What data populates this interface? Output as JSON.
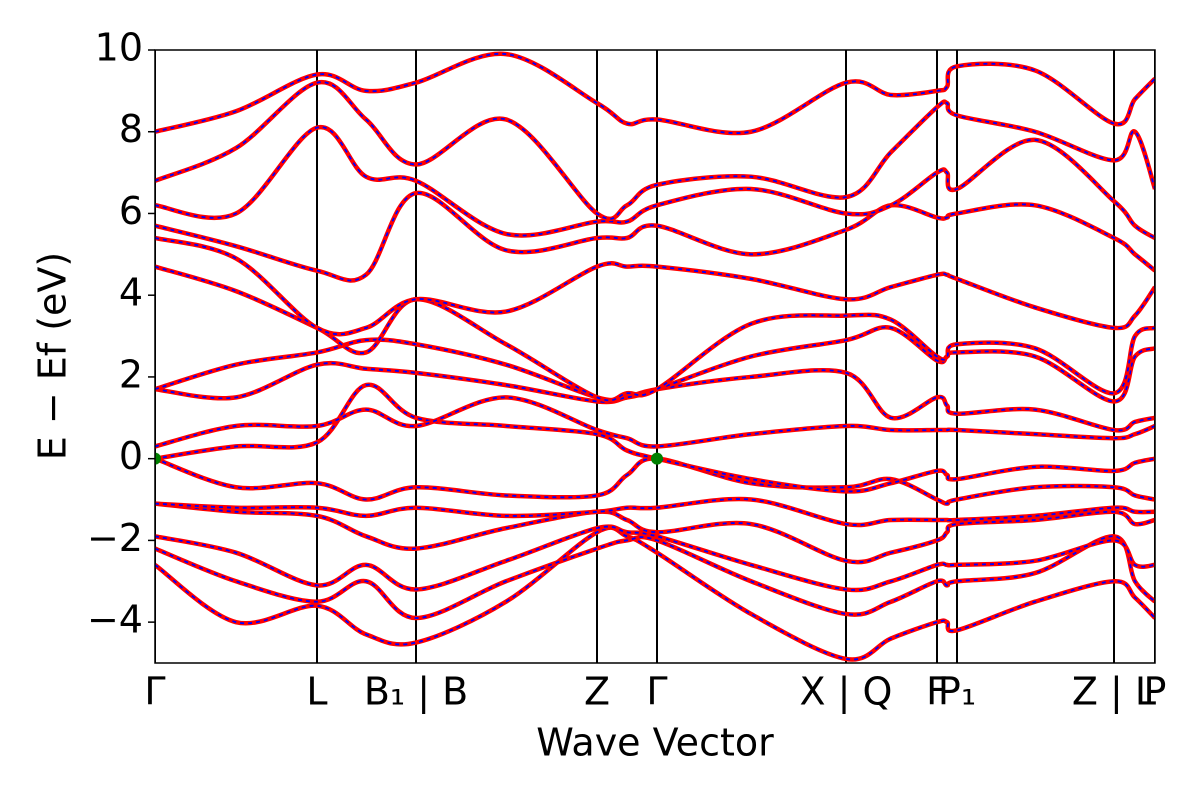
{
  "chart_data": {
    "type": "band_structure",
    "ylabel": "E − Ef (eV)",
    "xlabel": "Wave Vector",
    "xlim": [
      0,
      1000
    ],
    "ylim": [
      -5,
      10
    ],
    "yticks": [
      {
        "value": -4,
        "label": "−4"
      },
      {
        "value": -2,
        "label": "−2"
      },
      0,
      2,
      4,
      6,
      8,
      10
    ],
    "xticks": [
      {
        "value": 0,
        "label": "Γ"
      },
      {
        "value": 162,
        "label": "L"
      },
      {
        "value": 261,
        "label": "B₁ | B"
      },
      {
        "value": 442,
        "label": "Z"
      },
      {
        "value": 502,
        "label": "Γ"
      },
      {
        "value": 691,
        "label": "X | Q"
      },
      {
        "value": 782,
        "label": "F"
      },
      {
        "value": 802,
        "label": "P₁"
      },
      {
        "value": 959,
        "label": "Z | L"
      },
      {
        "value": 1000,
        "label": "P"
      }
    ],
    "color": "#ff0000",
    "overlay_color": "#0000ff",
    "x": [
      0,
      81,
      162,
      211,
      261,
      351,
      442,
      472,
      502,
      596,
      691,
      736,
      782,
      792,
      802,
      880,
      959,
      980,
      1000
    ],
    "series": [
      {
        "values": [
          -2.6,
          -4.0,
          -3.6,
          -4.3,
          -4.5,
          -3.5,
          -1.8,
          -1.9,
          -2.3,
          -3.8,
          -4.9,
          -4.4,
          -4.0,
          -4.0,
          -4.2,
          -3.5,
          -3.0,
          -3.4,
          -3.9
        ]
      },
      {
        "values": [
          -2.2,
          -3.0,
          -3.5,
          -3.0,
          -3.9,
          -3.0,
          -2.2,
          -2.0,
          -2.0,
          -3.0,
          -3.8,
          -3.5,
          -3.0,
          -3.1,
          -3.0,
          -2.8,
          -1.9,
          -3.0,
          -3.5
        ]
      },
      {
        "values": [
          -1.9,
          -2.3,
          -3.1,
          -2.6,
          -3.2,
          -2.5,
          -1.7,
          -1.8,
          -1.9,
          -2.6,
          -3.2,
          -3.0,
          -2.6,
          -2.6,
          -2.6,
          -2.5,
          -2.0,
          -2.6,
          -2.6
        ]
      },
      {
        "values": [
          -1.1,
          -1.3,
          -1.4,
          -1.9,
          -2.2,
          -1.7,
          -1.3,
          -1.5,
          -1.8,
          -1.6,
          -2.5,
          -2.3,
          -2.0,
          -1.8,
          -1.6,
          -1.5,
          -1.3,
          -1.6,
          -1.5
        ]
      },
      {
        "values": [
          -1.1,
          -1.2,
          -1.2,
          -1.4,
          -1.2,
          -1.4,
          -1.3,
          -1.2,
          -1.2,
          -1.0,
          -1.6,
          -1.5,
          -1.5,
          -1.5,
          -1.5,
          -1.4,
          -1.2,
          -1.3,
          -1.3
        ]
      },
      {
        "values": [
          0,
          -0.7,
          -0.6,
          -1.0,
          -0.7,
          -0.9,
          -0.9,
          -0.4,
          0,
          -0.6,
          -0.7,
          -0.5,
          -1.0,
          -1.1,
          -1.0,
          -0.7,
          -0.7,
          -0.9,
          -1.0
        ]
      },
      {
        "values": [
          0,
          0.3,
          0.4,
          1.8,
          1.0,
          0.8,
          0.6,
          0.2,
          0,
          -0.5,
          -0.8,
          -0.6,
          -0.3,
          -0.4,
          -0.5,
          -0.2,
          -0.3,
          -0.1,
          0
        ]
      },
      {
        "values": [
          0.3,
          0.8,
          0.8,
          1.2,
          0.8,
          1.5,
          0.7,
          0.5,
          0.3,
          0.6,
          0.8,
          0.7,
          0.7,
          0.7,
          0.7,
          0.6,
          0.5,
          0.6,
          0.8
        ]
      },
      {
        "values": [
          1.7,
          1.5,
          2.3,
          2.2,
          2.1,
          1.8,
          1.4,
          1.5,
          1.7,
          2.0,
          2.1,
          1.0,
          1.5,
          1.3,
          1.1,
          1.2,
          0.7,
          0.9,
          1.0
        ]
      },
      {
        "values": [
          1.7,
          2.3,
          2.6,
          2.9,
          2.8,
          2.3,
          1.5,
          1.5,
          1.7,
          2.5,
          2.9,
          3.2,
          2.4,
          2.5,
          2.6,
          2.5,
          1.4,
          2.5,
          2.7
        ]
      },
      {
        "values": [
          4.7,
          4.1,
          3.2,
          2.6,
          3.9,
          2.8,
          1.5,
          1.6,
          1.7,
          3.3,
          3.5,
          3.4,
          2.5,
          2.5,
          2.8,
          2.7,
          1.6,
          3.0,
          3.2
        ]
      },
      {
        "values": [
          5.4,
          4.9,
          3.2,
          3.2,
          3.9,
          3.6,
          4.7,
          4.7,
          4.7,
          4.4,
          3.9,
          4.2,
          4.5,
          4.5,
          4.4,
          3.7,
          3.2,
          3.5,
          4.2
        ]
      },
      {
        "values": [
          5.7,
          5.2,
          4.6,
          4.5,
          6.5,
          5.1,
          5.4,
          5.4,
          5.7,
          5.0,
          5.6,
          6.2,
          5.9,
          5.9,
          6.0,
          6.2,
          5.4,
          5.0,
          4.6
        ]
      },
      {
        "values": [
          6.2,
          6.0,
          8.1,
          6.9,
          6.8,
          5.5,
          5.8,
          5.8,
          6.2,
          6.6,
          6.0,
          6.2,
          7.0,
          7.0,
          6.6,
          7.8,
          6.3,
          5.7,
          5.4
        ]
      },
      {
        "values": [
          6.8,
          7.6,
          9.2,
          8.3,
          7.2,
          8.3,
          6.0,
          6.2,
          6.7,
          6.9,
          6.4,
          7.5,
          8.6,
          8.7,
          8.4,
          8.0,
          7.3,
          8.0,
          6.6
        ]
      },
      {
        "values": [
          8.0,
          8.5,
          9.4,
          9.0,
          9.2,
          9.9,
          8.7,
          8.2,
          8.3,
          8.0,
          9.2,
          8.9,
          9.0,
          9.1,
          9.6,
          9.5,
          8.2,
          8.8,
          9.3
        ]
      }
    ],
    "points": {
      "x": [
        0,
        502
      ],
      "values": [
        0,
        0
      ],
      "color": "#008000"
    }
  }
}
